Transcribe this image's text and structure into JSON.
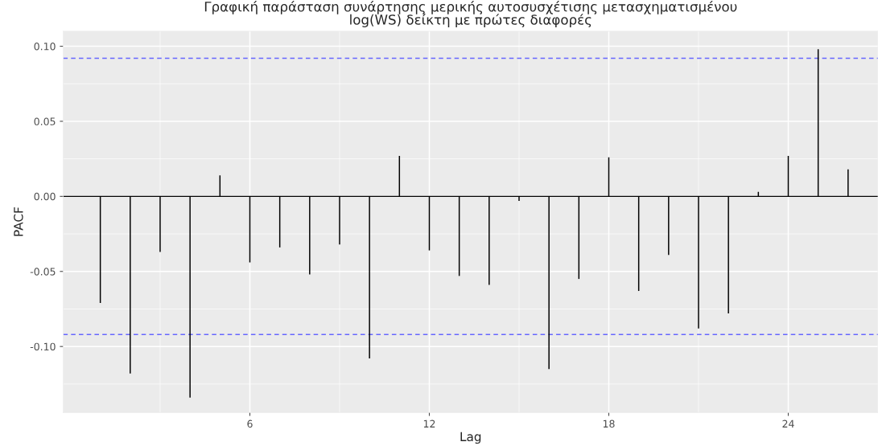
{
  "chart_data": {
    "type": "bar",
    "title": "Γραφική παράσταση συνάρτησης μερικής αυτοσυσχέτισης μετασχηματισμένου\nlog(WS) δείκτη με πρώτες διαφορές",
    "xlabel": "Lag",
    "ylabel": "PACF",
    "color": "#000000",
    "x": [
      1,
      2,
      3,
      4,
      5,
      6,
      7,
      8,
      9,
      10,
      11,
      12,
      13,
      14,
      15,
      16,
      17,
      18,
      19,
      20,
      21,
      22,
      23,
      24,
      25,
      26
    ],
    "values": [
      -0.071,
      -0.118,
      -0.037,
      -0.134,
      0.014,
      -0.044,
      -0.034,
      -0.052,
      -0.032,
      -0.108,
      0.027,
      -0.036,
      -0.053,
      -0.059,
      -0.003,
      -0.115,
      -0.055,
      0.026,
      -0.063,
      -0.039,
      -0.088,
      -0.078,
      0.003,
      0.027,
      0.098,
      0.018
    ],
    "xlim": [
      -0.24,
      27.0
    ],
    "ylim": [
      -0.144,
      0.11
    ],
    "xticks": [
      6,
      12,
      18,
      24
    ],
    "yticks": [
      {
        "value": -0.1,
        "label": "-0.10"
      },
      {
        "value": -0.05,
        "label": "-0.05"
      },
      {
        "value": 0,
        "label": "0.00"
      },
      {
        "value": 0.05,
        "label": "0.05"
      },
      {
        "value": 0.1,
        "label": "0.10"
      }
    ],
    "ref_lines": [
      {
        "axis": "y",
        "value": 0.092,
        "color": "#6666ff",
        "line_style": "dashed"
      },
      {
        "axis": "y",
        "value": -0.092,
        "color": "#6666ff",
        "line_style": "dashed"
      },
      {
        "axis": "y",
        "value": 0,
        "color": "#000000",
        "line_style": "solid"
      }
    ],
    "grid": true
  }
}
